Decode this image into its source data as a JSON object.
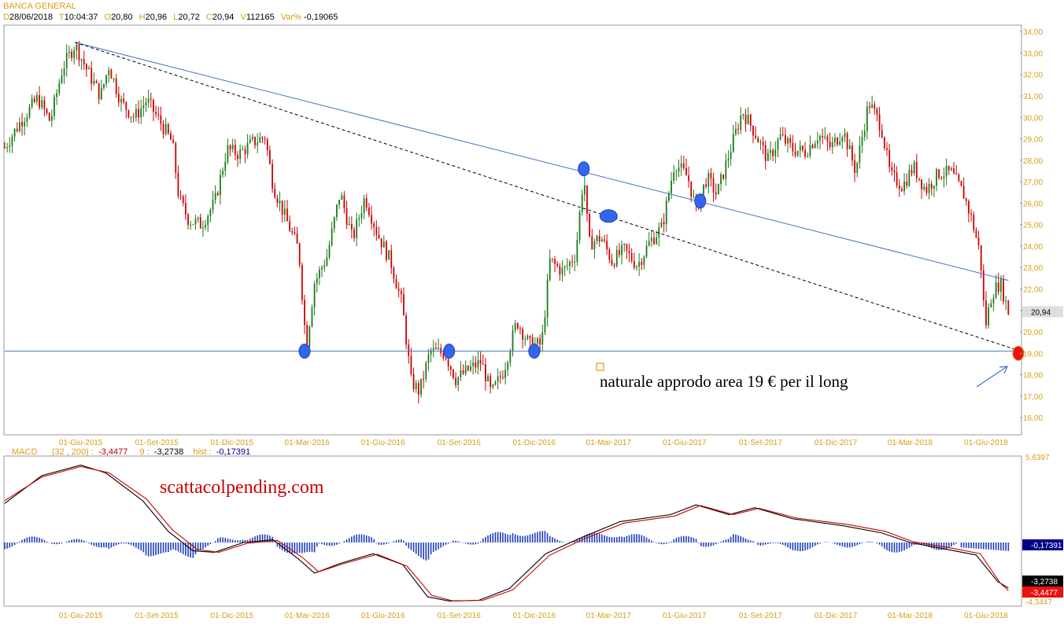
{
  "header": {
    "title": "BANCA GENERAL",
    "fields": [
      {
        "label": "D",
        "value": "28/06/2018"
      },
      {
        "label": "T",
        "value": "10:04:37"
      },
      {
        "label": "O",
        "value": "20,80"
      },
      {
        "label": "H",
        "value": "20,96"
      },
      {
        "label": "L",
        "value": "20,72"
      },
      {
        "label": "C",
        "value": "20,94"
      },
      {
        "label": "V",
        "value": "112165"
      },
      {
        "label": "Var%",
        "value": "-0,19065"
      }
    ]
  },
  "macd_header": {
    "name": "MACD",
    "params": "(32 , 200) :",
    "macd_value": "-3,4477",
    "signal_label": "9 :",
    "signal_value": "-3,2738",
    "hist_label": "hist :",
    "hist_value": "-0,17391"
  },
  "annotations": {
    "target_text": "naturale approdo area 19 € per il long",
    "watermark": "scattacolpending.com"
  },
  "chart_data": [
    {
      "type": "candlestick",
      "x_ticks": [
        "01-Giu-2015",
        "01-Set-2015",
        "01-Dic-2015",
        "01-Mar-2016",
        "01-Giu-2016",
        "01-Set-2016",
        "01-Dic-2016",
        "01-Mar-2017",
        "01-Giu-2017",
        "01-Set-2017",
        "01-Dic-2017",
        "01-Mar-2018",
        "01-Giu-2018"
      ],
      "y_ticks": [
        "34,00",
        "33,00",
        "32,00",
        "31,00",
        "30,00",
        "29,00",
        "28,00",
        "27,00",
        "26,00",
        "25,00",
        "24,00",
        "23,00",
        "22,00",
        "21,00",
        "20,00",
        "19,00",
        "18,00",
        "17,00",
        "16,00"
      ],
      "ylim": [
        15.2,
        34.3
      ],
      "last_price_label": "20,94",
      "last_price": 20.94,
      "colors": {
        "up": "#1a7a1a",
        "down": "#cc0000",
        "trendline": "#4472c4",
        "dashed": "#000000",
        "marker": "#3366ee",
        "target_marker": "#ee1111"
      },
      "price_path": [
        [
          "2015-03-01",
          28.6
        ],
        [
          "2015-03-20",
          29.8
        ],
        [
          "2015-04-10",
          30.9
        ],
        [
          "2015-04-25",
          29.8
        ],
        [
          "2015-05-10",
          32.3
        ],
        [
          "2015-05-25",
          33.4
        ],
        [
          "2015-06-10",
          32.1
        ],
        [
          "2015-06-25",
          31.0
        ],
        [
          "2015-07-05",
          32.4
        ],
        [
          "2015-07-20",
          30.7
        ],
        [
          "2015-08-05",
          30.0
        ],
        [
          "2015-08-20",
          30.8
        ],
        [
          "2015-09-05",
          29.8
        ],
        [
          "2015-09-20",
          28.8
        ],
        [
          "2015-09-28",
          26.2
        ],
        [
          "2015-10-10",
          25.2
        ],
        [
          "2015-10-25",
          25.0
        ],
        [
          "2015-11-10",
          26.0
        ],
        [
          "2015-11-25",
          28.5
        ],
        [
          "2015-12-10",
          28.3
        ],
        [
          "2015-12-25",
          28.8
        ],
        [
          "2016-01-10",
          29.1
        ],
        [
          "2016-01-20",
          26.8
        ],
        [
          "2016-02-05",
          25.2
        ],
        [
          "2016-02-20",
          23.8
        ],
        [
          "2016-02-29",
          19.3
        ],
        [
          "2016-03-10",
          22.3
        ],
        [
          "2016-03-25",
          23.5
        ],
        [
          "2016-04-10",
          26.5
        ],
        [
          "2016-04-25",
          24.3
        ],
        [
          "2016-05-10",
          26.3
        ],
        [
          "2016-05-25",
          24.6
        ],
        [
          "2016-06-10",
          23.3
        ],
        [
          "2016-06-24",
          21.3
        ],
        [
          "2016-07-05",
          17.7
        ],
        [
          "2016-07-15",
          17.2
        ],
        [
          "2016-07-28",
          19.1
        ],
        [
          "2016-08-15",
          19.0
        ],
        [
          "2016-08-28",
          17.8
        ],
        [
          "2016-09-15",
          18.3
        ],
        [
          "2016-09-28",
          18.6
        ],
        [
          "2016-10-10",
          17.1
        ],
        [
          "2016-10-25",
          18.2
        ],
        [
          "2016-11-10",
          20.5
        ],
        [
          "2016-11-25",
          19.4
        ],
        [
          "2016-12-10",
          19.4
        ],
        [
          "2016-12-20",
          23.3
        ],
        [
          "2017-01-05",
          22.8
        ],
        [
          "2017-01-20",
          23.6
        ],
        [
          "2017-01-30",
          27.4
        ],
        [
          "2017-02-05",
          24.1
        ],
        [
          "2017-02-20",
          24.4
        ],
        [
          "2017-03-05",
          23.3
        ],
        [
          "2017-03-20",
          23.8
        ],
        [
          "2017-04-05",
          23.1
        ],
        [
          "2017-04-20",
          24.2
        ],
        [
          "2017-05-05",
          24.9
        ],
        [
          "2017-05-20",
          27.9
        ],
        [
          "2017-06-05",
          27.2
        ],
        [
          "2017-06-15",
          25.7
        ],
        [
          "2017-06-28",
          27.2
        ],
        [
          "2017-07-10",
          26.4
        ],
        [
          "2017-07-25",
          28.3
        ],
        [
          "2017-08-10",
          30.3
        ],
        [
          "2017-08-25",
          29.3
        ],
        [
          "2017-09-10",
          28.0
        ],
        [
          "2017-09-25",
          29.1
        ],
        [
          "2017-10-10",
          28.5
        ],
        [
          "2017-10-25",
          28.4
        ],
        [
          "2017-11-10",
          29.2
        ],
        [
          "2017-11-25",
          28.6
        ],
        [
          "2017-12-10",
          29.4
        ],
        [
          "2017-12-25",
          27.5
        ],
        [
          "2018-01-10",
          30.7
        ],
        [
          "2018-01-25",
          29.6
        ],
        [
          "2018-02-05",
          27.3
        ],
        [
          "2018-02-20",
          26.8
        ],
        [
          "2018-03-05",
          27.7
        ],
        [
          "2018-03-20",
          26.6
        ],
        [
          "2018-04-05",
          27.4
        ],
        [
          "2018-04-20",
          27.4
        ],
        [
          "2018-05-05",
          26.4
        ],
        [
          "2018-05-15",
          25.2
        ],
        [
          "2018-05-25",
          23.6
        ],
        [
          "2018-05-31",
          20.2
        ],
        [
          "2018-06-08",
          21.8
        ],
        [
          "2018-06-18",
          22.3
        ],
        [
          "2018-06-28",
          20.94
        ]
      ],
      "lines": [
        {
          "kind": "solid",
          "color": "#4472c4",
          "from": [
            "2015-05-25",
            33.5
          ],
          "to": [
            "2018-06-28",
            22.4
          ]
        },
        {
          "kind": "dashed",
          "color": "#000000",
          "from": [
            "2015-05-25",
            33.5
          ],
          "to": [
            "2018-07-05",
            19.2
          ]
        },
        {
          "kind": "horizontal",
          "color": "#4472c4",
          "level": 19.1
        }
      ],
      "markers": [
        {
          "date": "2016-02-27",
          "price": 19.1,
          "color": "#3366ee"
        },
        {
          "date": "2016-08-20",
          "price": 19.1,
          "color": "#3366ee"
        },
        {
          "date": "2016-12-01",
          "price": 19.1,
          "color": "#3366ee"
        },
        {
          "date": "2017-01-30",
          "price": 27.6,
          "color": "#3366ee"
        },
        {
          "date": "2017-03-01",
          "price": 25.4,
          "color": "#3366ee",
          "wide": true
        },
        {
          "date": "2017-06-20",
          "price": 26.1,
          "color": "#3366ee"
        },
        {
          "date": "2018-07-10",
          "price": 19.0,
          "color": "#ee1111"
        }
      ]
    },
    {
      "type": "line",
      "title": "MACD",
      "y_ticks": [
        "5,6397",
        "-4,3447"
      ],
      "ylim": [
        -4.3447,
        5.6397
      ],
      "value_labels": [
        {
          "text": "-0,17391",
          "value": -0.17391,
          "color": "#00008b"
        },
        {
          "text": "-3,2738",
          "value": -3.2738,
          "color": "#000000"
        },
        {
          "text": "-3,4477",
          "value": -3.4477,
          "color": "#ee1111"
        }
      ],
      "series": [
        {
          "color": "#000000",
          "points": [
            [
              "2015-03-01",
              2.8
            ],
            [
              "2015-04-15",
              4.8
            ],
            [
              "2015-06-01",
              5.55
            ],
            [
              "2015-07-01",
              5.0
            ],
            [
              "2015-08-15",
              3.0
            ],
            [
              "2015-09-15",
              0.8
            ],
            [
              "2015-10-15",
              -0.6
            ],
            [
              "2015-11-10",
              -0.7
            ],
            [
              "2015-12-15",
              0.0
            ],
            [
              "2016-01-20",
              0.2
            ],
            [
              "2016-02-20",
              -1.2
            ],
            [
              "2016-03-10",
              -2.2
            ],
            [
              "2016-04-10",
              -1.5
            ],
            [
              "2016-05-20",
              -0.8
            ],
            [
              "2016-06-25",
              -1.6
            ],
            [
              "2016-07-25",
              -3.9
            ],
            [
              "2016-08-20",
              -4.2
            ],
            [
              "2016-09-25",
              -4.15
            ],
            [
              "2016-11-01",
              -3.3
            ],
            [
              "2016-12-15",
              -0.8
            ],
            [
              "2017-01-25",
              0.3
            ],
            [
              "2017-03-15",
              1.5
            ],
            [
              "2017-05-15",
              2.0
            ],
            [
              "2017-06-15",
              2.7
            ],
            [
              "2017-07-25",
              2.0
            ],
            [
              "2017-08-25",
              2.5
            ],
            [
              "2017-10-10",
              1.7
            ],
            [
              "2017-12-10",
              1.2
            ],
            [
              "2018-01-25",
              0.7
            ],
            [
              "2018-03-01",
              0.0
            ],
            [
              "2018-04-15",
              -0.5
            ],
            [
              "2018-05-20",
              -0.9
            ],
            [
              "2018-06-15",
              -2.8
            ],
            [
              "2018-06-28",
              -3.27
            ]
          ]
        },
        {
          "color": "#cc0000",
          "points": [
            [
              "2015-03-01",
              3.0
            ],
            [
              "2015-04-15",
              4.7
            ],
            [
              "2015-06-01",
              5.45
            ],
            [
              "2015-07-05",
              5.0
            ],
            [
              "2015-08-20",
              3.1
            ],
            [
              "2015-09-20",
              0.9
            ],
            [
              "2015-10-20",
              -0.5
            ],
            [
              "2015-11-15",
              -0.7
            ],
            [
              "2015-12-20",
              -0.05
            ],
            [
              "2016-01-25",
              0.15
            ],
            [
              "2016-02-25",
              -1.1
            ],
            [
              "2016-03-15",
              -2.1
            ],
            [
              "2016-04-15",
              -1.5
            ],
            [
              "2016-05-25",
              -0.85
            ],
            [
              "2016-06-30",
              -1.7
            ],
            [
              "2016-07-30",
              -3.8
            ],
            [
              "2016-08-25",
              -4.2
            ],
            [
              "2016-09-30",
              -4.15
            ],
            [
              "2016-11-05",
              -3.4
            ],
            [
              "2016-12-20",
              -0.9
            ],
            [
              "2017-01-30",
              0.25
            ],
            [
              "2017-03-20",
              1.4
            ],
            [
              "2017-05-20",
              1.9
            ],
            [
              "2017-06-20",
              2.65
            ],
            [
              "2017-07-30",
              2.0
            ],
            [
              "2017-08-30",
              2.45
            ],
            [
              "2017-10-15",
              1.75
            ],
            [
              "2017-12-15",
              1.3
            ],
            [
              "2018-01-30",
              0.8
            ],
            [
              "2018-03-05",
              0.05
            ],
            [
              "2018-04-20",
              -0.4
            ],
            [
              "2018-05-25",
              -0.8
            ],
            [
              "2018-06-18",
              -2.9
            ],
            [
              "2018-06-28",
              -3.45
            ]
          ]
        }
      ]
    }
  ]
}
